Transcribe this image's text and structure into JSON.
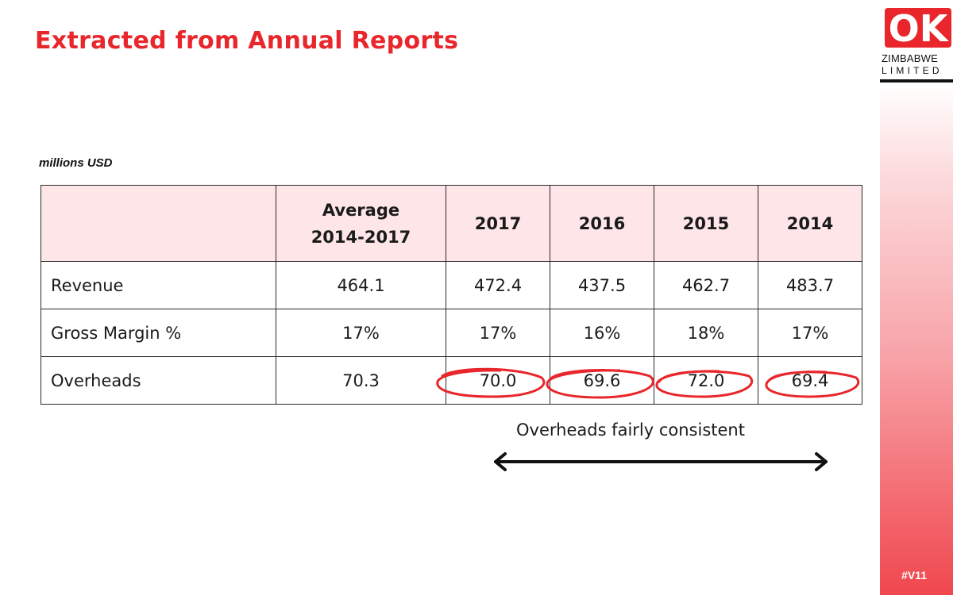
{
  "title": "Extracted from Annual Reports",
  "unit_label": "millions USD",
  "logo": {
    "mark": "OK",
    "line1": "ZIMBABWE",
    "line2": "LIMITED"
  },
  "slide_tag": "#V11",
  "table": {
    "headers": {
      "label": "",
      "avg_line1": "Average",
      "avg_line2": "2014-2017",
      "y2017": "2017",
      "y2016": "2016",
      "y2015": "2015",
      "y2014": "2014"
    },
    "rows": [
      {
        "label": "Revenue",
        "avg": "464.1",
        "y2017": "472.4",
        "y2016": "437.5",
        "y2015": "462.7",
        "y2014": "483.7"
      },
      {
        "label": "Gross Margin %",
        "avg": "17%",
        "y2017": "17%",
        "y2016": "16%",
        "y2015": "18%",
        "y2014": "17%"
      },
      {
        "label": "Overheads",
        "avg": "70.3",
        "y2017": "70.0",
        "y2016": "69.6",
        "y2015": "72.0",
        "y2014": "69.4"
      }
    ]
  },
  "annotation": {
    "text": "Overheads fairly consistent"
  },
  "colors": {
    "accent": "#e8262b",
    "header_fill": "#fde5e8",
    "circle": "#e8262b"
  }
}
